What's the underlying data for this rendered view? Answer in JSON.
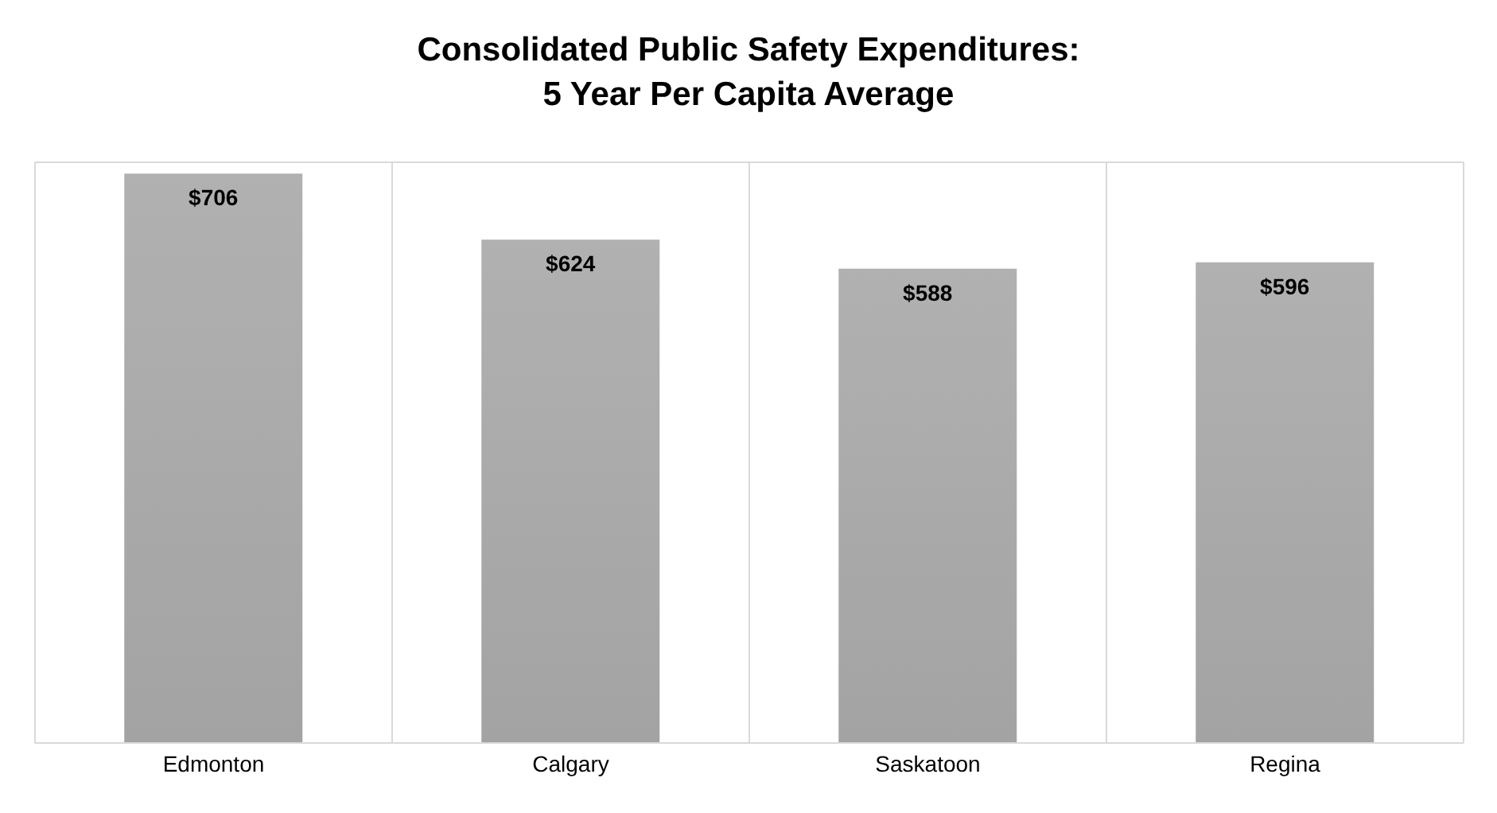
{
  "chart_data": {
    "type": "bar",
    "title": "Consolidated Public Safety Expenditures:\n5 Year Per Capita Average",
    "categories": [
      "Edmonton",
      "Calgary",
      "Saskatoon",
      "Regina"
    ],
    "values": [
      706,
      624,
      588,
      596
    ],
    "value_labels": [
      "$706",
      "$624",
      "$588",
      "$596"
    ],
    "color": "#a3a3a3",
    "grid": true,
    "legend": false
  }
}
